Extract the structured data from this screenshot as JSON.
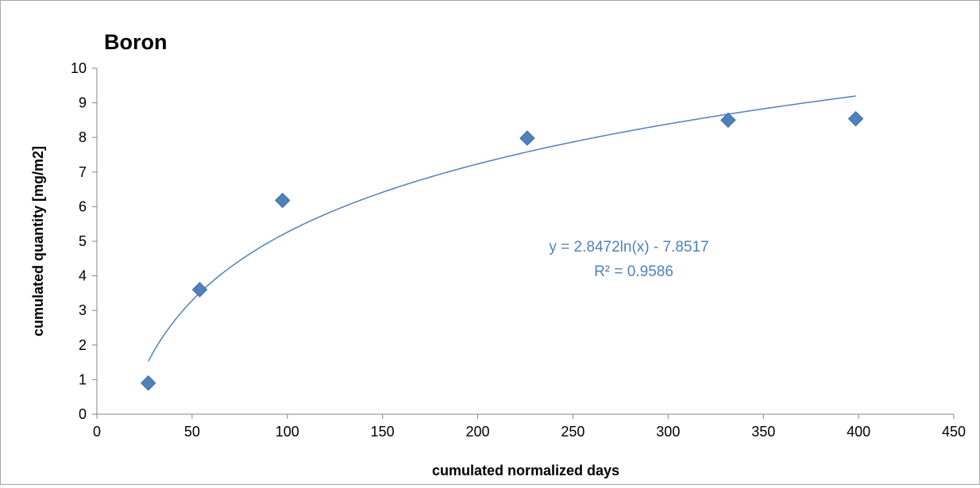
{
  "chart_data": {
    "type": "scatter",
    "title": "Boron",
    "xlabel": "cumulated normalized days",
    "ylabel": "cumulated quantity [mg/m2]",
    "xlim": [
      0,
      450
    ],
    "ylim": [
      0,
      10
    ],
    "x_ticks": [
      "0",
      "50",
      "100",
      "150",
      "200",
      "250",
      "300",
      "350",
      "400",
      "450"
    ],
    "y_ticks": [
      "0",
      "1",
      "2",
      "3",
      "4",
      "5",
      "6",
      "7",
      "8",
      "9",
      "10"
    ],
    "grid": false,
    "legend": "none",
    "marker_color": "#4f81bd",
    "marker": "diamond",
    "points": [
      {
        "x": 27,
        "y": 0.9
      },
      {
        "x": 54,
        "y": 3.6
      },
      {
        "x": 97.5,
        "y": 6.18
      },
      {
        "x": 226,
        "y": 7.98
      },
      {
        "x": 331.5,
        "y": 8.5
      },
      {
        "x": 398.5,
        "y": 8.54
      }
    ],
    "trendline": {
      "type": "logarithmic",
      "a": 2.8472,
      "b": -7.8517,
      "x_range": [
        27,
        398.5
      ],
      "color": "#4f81bd",
      "equation_text": "y = 2.8472ln(x) - 7.8517",
      "r2_text": "R² = 0.9586"
    }
  }
}
